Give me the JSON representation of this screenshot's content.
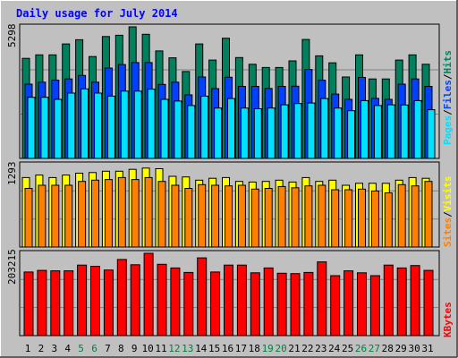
{
  "chart_data": [
    {
      "type": "bar",
      "title": "Daily usage for July 2014",
      "ylabel_parts": [
        "Pages",
        "/",
        "Files",
        "/",
        "Hits"
      ],
      "ymax_label": "5298",
      "ylim": [
        0,
        5298
      ],
      "categories": [
        "1",
        "2",
        "3",
        "4",
        "5",
        "6",
        "7",
        "8",
        "9",
        "10",
        "11",
        "12",
        "13",
        "14",
        "15",
        "16",
        "17",
        "18",
        "19",
        "20",
        "21",
        "22",
        "23",
        "24",
        "25",
        "26",
        "27",
        "28",
        "29",
        "30",
        "31"
      ],
      "weekend_days": [
        5,
        6,
        12,
        13,
        19,
        20,
        26,
        27
      ],
      "series": [
        {
          "name": "Hits",
          "color": "#00805c",
          "values": [
            4030,
            4170,
            4170,
            4610,
            4780,
            4100,
            4910,
            4960,
            5298,
            5000,
            4330,
            4050,
            3500,
            4610,
            3960,
            4840,
            4060,
            3790,
            3660,
            3660,
            3930,
            4790,
            4130,
            3850,
            3280,
            4170,
            3200,
            3200,
            3960,
            4170,
            3790
          ]
        },
        {
          "name": "Files",
          "color": "#0040ff",
          "values": [
            2990,
            3070,
            3150,
            3200,
            3340,
            3070,
            3640,
            3780,
            3860,
            3860,
            2980,
            3070,
            2560,
            3280,
            2810,
            3270,
            2900,
            2900,
            2820,
            2900,
            2910,
            3580,
            3150,
            2590,
            2380,
            3260,
            2420,
            2380,
            2990,
            3200,
            2900
          ]
        },
        {
          "name": "Pages",
          "color": "#00e0ff",
          "values": [
            2460,
            2460,
            2380,
            2630,
            2800,
            2630,
            2510,
            2710,
            2710,
            2790,
            2380,
            2310,
            2130,
            2510,
            2030,
            2410,
            2030,
            2000,
            2030,
            2160,
            2210,
            2230,
            2410,
            2030,
            1920,
            2330,
            2130,
            2160,
            2150,
            2330,
            1960
          ]
        }
      ]
    },
    {
      "type": "bar",
      "ylabel_parts": [
        "Sites",
        "/",
        "Visits"
      ],
      "ymax_label": "1293",
      "ylim": [
        0,
        1293
      ],
      "series": [
        {
          "name": "Visits",
          "color": "#ffff00",
          "values": [
            1090,
            1130,
            1090,
            1130,
            1160,
            1170,
            1190,
            1190,
            1220,
            1240,
            1230,
            1110,
            1100,
            1050,
            1080,
            1090,
            1030,
            1020,
            1030,
            1050,
            1020,
            1090,
            1030,
            1050,
            970,
            1000,
            1000,
            1000,
            1050,
            1090,
            1080
          ]
        },
        {
          "name": "Sites",
          "color": "#ff8000",
          "values": [
            920,
            970,
            970,
            970,
            1030,
            1050,
            1060,
            1090,
            1060,
            1090,
            1030,
            970,
            920,
            980,
            970,
            960,
            970,
            910,
            920,
            950,
            930,
            960,
            970,
            900,
            900,
            910,
            880,
            850,
            980,
            960,
            1030
          ]
        }
      ]
    },
    {
      "type": "bar",
      "ylabel_parts": [
        "KBytes"
      ],
      "ymax_label": "203215",
      "ylim": [
        0,
        203215
      ],
      "series": [
        {
          "name": "KBytes",
          "color": "#ff0000",
          "values": [
            157000,
            161000,
            160000,
            160000,
            174000,
            171000,
            162000,
            188000,
            175000,
            203215,
            176000,
            167000,
            156000,
            192000,
            157000,
            174000,
            174000,
            155000,
            167000,
            154000,
            153000,
            156000,
            182000,
            148000,
            160000,
            155000,
            148000,
            174000,
            167000,
            173000,
            161000
          ]
        }
      ]
    }
  ],
  "colors": {
    "background": "#c0c0c0",
    "plot_background": "#c0c0c0",
    "title_color": "#0000ff",
    "weekday_label_color": "#000000",
    "weekend_label_color": "#008040"
  }
}
